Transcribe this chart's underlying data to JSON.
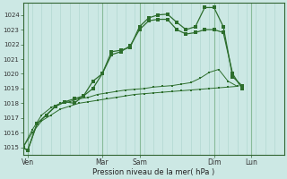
{
  "bg_color": "#cce8e4",
  "grid_color_minor": "#aad4cc",
  "grid_color_major": "#88bb99",
  "line_color": "#2d6e2d",
  "ylim": [
    1014.5,
    1024.8
  ],
  "xlim": [
    0,
    28
  ],
  "xlabel": "Pression niveau de la mer( hPa )",
  "series": [
    {
      "x": [
        0,
        0.5,
        1.5,
        2.5,
        3.5,
        4.5,
        5.5,
        6.5,
        7.5,
        8.5,
        9.5,
        10.5,
        11.5,
        12.5,
        13.5,
        14.5,
        15.5,
        16.5,
        17.5,
        18.5,
        19.5,
        20.5,
        21.5,
        22.5,
        23.5
      ],
      "y": [
        1015.0,
        1014.8,
        1016.6,
        1017.2,
        1017.8,
        1018.1,
        1018.0,
        1018.5,
        1019.5,
        1020.0,
        1021.5,
        1021.6,
        1021.8,
        1023.2,
        1023.8,
        1024.0,
        1024.05,
        1023.5,
        1023.0,
        1023.2,
        1024.5,
        1024.5,
        1023.2,
        1019.8,
        1019.2
      ]
    },
    {
      "x": [
        0,
        0.5,
        1.5,
        2.5,
        3.5,
        4.5,
        5.5,
        6.5,
        7.5,
        8.5,
        9.5,
        10.5,
        11.5,
        12.5,
        13.5,
        14.5,
        15.5,
        16.5,
        17.5,
        18.5,
        19.5,
        20.5,
        21.5,
        22.5,
        23.5
      ],
      "y": [
        1015.0,
        1014.8,
        1016.6,
        1017.2,
        1017.8,
        1018.1,
        1018.3,
        1018.5,
        1019.0,
        1020.0,
        1021.3,
        1021.5,
        1021.9,
        1023.0,
        1023.6,
        1023.7,
        1023.7,
        1023.0,
        1022.7,
        1022.8,
        1023.0,
        1023.0,
        1022.8,
        1020.0,
        1019.0
      ]
    },
    {
      "x": [
        0,
        1,
        2,
        3,
        4,
        5,
        6,
        7,
        8,
        9,
        10,
        11,
        12,
        13,
        14,
        15,
        16,
        17,
        18,
        19,
        20,
        21,
        22,
        23
      ],
      "y": [
        1015.0,
        1016.0,
        1016.8,
        1017.2,
        1017.6,
        1017.8,
        1018.0,
        1018.1,
        1018.2,
        1018.3,
        1018.4,
        1018.5,
        1018.6,
        1018.65,
        1018.7,
        1018.75,
        1018.8,
        1018.85,
        1018.9,
        1018.95,
        1019.0,
        1019.05,
        1019.1,
        1019.15
      ]
    },
    {
      "x": [
        0,
        1,
        2,
        3,
        4,
        5,
        6,
        7,
        8,
        9,
        10,
        11,
        12,
        13,
        14,
        15,
        16,
        17,
        18,
        19,
        20,
        21,
        22,
        23
      ],
      "y": [
        1015.0,
        1016.2,
        1017.2,
        1017.7,
        1018.0,
        1018.1,
        1018.3,
        1018.4,
        1018.6,
        1018.7,
        1018.8,
        1018.9,
        1018.95,
        1019.0,
        1019.1,
        1019.15,
        1019.2,
        1019.3,
        1019.4,
        1019.7,
        1020.1,
        1020.3,
        1019.5,
        1019.15
      ]
    }
  ],
  "xtick_positions": [
    0.5,
    8.5,
    12.5,
    20.5,
    24.5
  ],
  "xtick_labels": [
    "Ven",
    "Mar",
    "Sam",
    "Dim",
    "Lun"
  ],
  "major_vlines": [
    0.5,
    8.5,
    12.5,
    20.5,
    24.5
  ],
  "ytick_positions": [
    1015,
    1016,
    1017,
    1018,
    1019,
    1020,
    1021,
    1022,
    1023,
    1024
  ],
  "ytick_labels": [
    "1015",
    "1016",
    "1017",
    "1018",
    "1019",
    "1020",
    "1021",
    "1022",
    "1023",
    "1024"
  ]
}
